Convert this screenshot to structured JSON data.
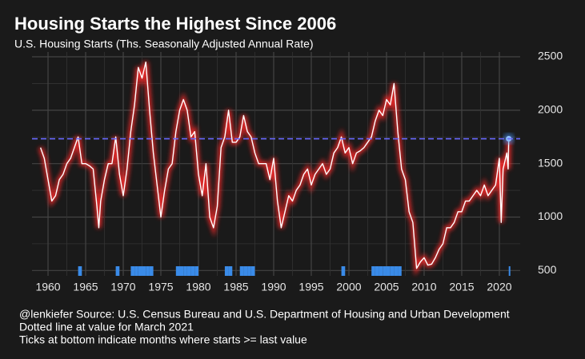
{
  "chart_data": {
    "type": "line",
    "title": "Housing Starts the Highest Since 2006",
    "subtitle": "U.S. Housing Starts (Ths. Seasonally Adjusted Annual Rate)",
    "caption": [
      "@lenkiefer Source: U.S. Census Bureau and U.S. Department of Housing and Urban Development",
      "Dotted line at value for March 2021",
      "Ticks at bottom indicate months where starts >= last value"
    ],
    "x": [
      1959,
      1959.5,
      1960,
      1960.5,
      1961,
      1961.5,
      1962,
      1962.5,
      1963,
      1963.5,
      1964,
      1964.5,
      1965,
      1965.5,
      1966,
      1966.5,
      1966.75,
      1967,
      1967.5,
      1968,
      1968.5,
      1969,
      1969.5,
      1970,
      1970.5,
      1971,
      1971.5,
      1972,
      1972.5,
      1973,
      1973.5,
      1974,
      1974.5,
      1975,
      1975.5,
      1976,
      1976.5,
      1977,
      1977.5,
      1978,
      1978.5,
      1979,
      1979.5,
      1980,
      1980.5,
      1981,
      1981.5,
      1982,
      1982.5,
      1983,
      1983.5,
      1984,
      1984.5,
      1985,
      1985.5,
      1986,
      1986.5,
      1987,
      1987.5,
      1988,
      1988.5,
      1989,
      1989.5,
      1990,
      1990.5,
      1991,
      1991.5,
      1992,
      1992.5,
      1993,
      1993.5,
      1994,
      1994.5,
      1995,
      1995.5,
      1996,
      1996.5,
      1997,
      1997.5,
      1998,
      1998.5,
      1999,
      1999.5,
      2000,
      2000.5,
      2001,
      2001.5,
      2002,
      2002.5,
      2003,
      2003.5,
      2004,
      2004.5,
      2005,
      2005.5,
      2006,
      2006.5,
      2007,
      2007.5,
      2008,
      2008.5,
      2009,
      2009.5,
      2010,
      2010.5,
      2011,
      2011.5,
      2012,
      2012.5,
      2013,
      2013.5,
      2014,
      2014.5,
      2015,
      2015.5,
      2016,
      2016.5,
      2017,
      2017.5,
      2018,
      2018.5,
      2019,
      2019.5,
      2020,
      2020.25,
      2020.5,
      2021,
      2021.17,
      2021.25
    ],
    "series": [
      {
        "name": "Housing Starts",
        "color": "#ffffff",
        "glow": "#ff2a2a",
        "values": [
          1650,
          1550,
          1350,
          1150,
          1200,
          1350,
          1400,
          1500,
          1550,
          1650,
          1750,
          1500,
          1500,
          1480,
          1450,
          1100,
          900,
          1150,
          1350,
          1500,
          1500,
          1750,
          1400,
          1200,
          1450,
          1800,
          2050,
          2400,
          2300,
          2450,
          2000,
          1600,
          1300,
          1000,
          1250,
          1450,
          1500,
          1800,
          2000,
          2100,
          2000,
          1750,
          1800,
          1400,
          1200,
          1500,
          1000,
          900,
          1100,
          1650,
          1750,
          2000,
          1700,
          1700,
          1750,
          1950,
          1800,
          1750,
          1600,
          1500,
          1500,
          1500,
          1350,
          1550,
          1150,
          900,
          1050,
          1200,
          1150,
          1250,
          1300,
          1400,
          1450,
          1300,
          1400,
          1450,
          1500,
          1400,
          1450,
          1600,
          1650,
          1750,
          1600,
          1650,
          1500,
          1600,
          1620,
          1650,
          1700,
          1750,
          1900,
          2000,
          1950,
          2100,
          2050,
          2250,
          1800,
          1450,
          1350,
          1050,
          950,
          520,
          580,
          620,
          550,
          560,
          620,
          700,
          750,
          900,
          900,
          950,
          1050,
          1050,
          1150,
          1150,
          1200,
          1250,
          1200,
          1300,
          1200,
          1250,
          1300,
          1550,
          950,
          1450,
          1600,
          1450,
          1733
        ]
      }
    ],
    "reference_line": 1733,
    "reference_color": "#6a6aff",
    "rug_color": "#3a8be8",
    "xlim": [
      1957.87,
      2022.77
    ],
    "xticks": [
      1960,
      1965,
      1970,
      1975,
      1980,
      1985,
      1990,
      1995,
      2000,
      2005,
      2010,
      2015,
      2020
    ],
    "ylim": [
      450,
      2545
    ],
    "yticks": [
      500,
      1000,
      1500,
      2000,
      2500
    ],
    "grid": true
  }
}
